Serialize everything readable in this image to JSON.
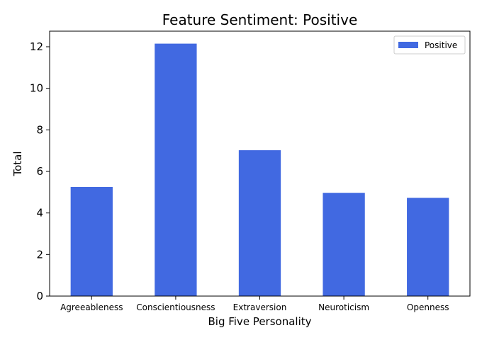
{
  "chart_data": {
    "type": "bar",
    "title": "Feature Sentiment: Positive",
    "xlabel": "Big Five Personality",
    "ylabel": "Total",
    "categories": [
      "Agreeableness",
      "Conscientiousness",
      "Extraversion",
      "Neuroticism",
      "Openness"
    ],
    "series": [
      {
        "name": "Positive",
        "values": [
          5.25,
          12.15,
          7.02,
          4.97,
          4.73
        ],
        "color": "#4169e1"
      }
    ],
    "ylim": [
      0,
      12.75
    ],
    "yticks": [
      "0",
      "2",
      "4",
      "6",
      "8",
      "10",
      "12"
    ],
    "grid": false,
    "legend_position": "top-right"
  }
}
